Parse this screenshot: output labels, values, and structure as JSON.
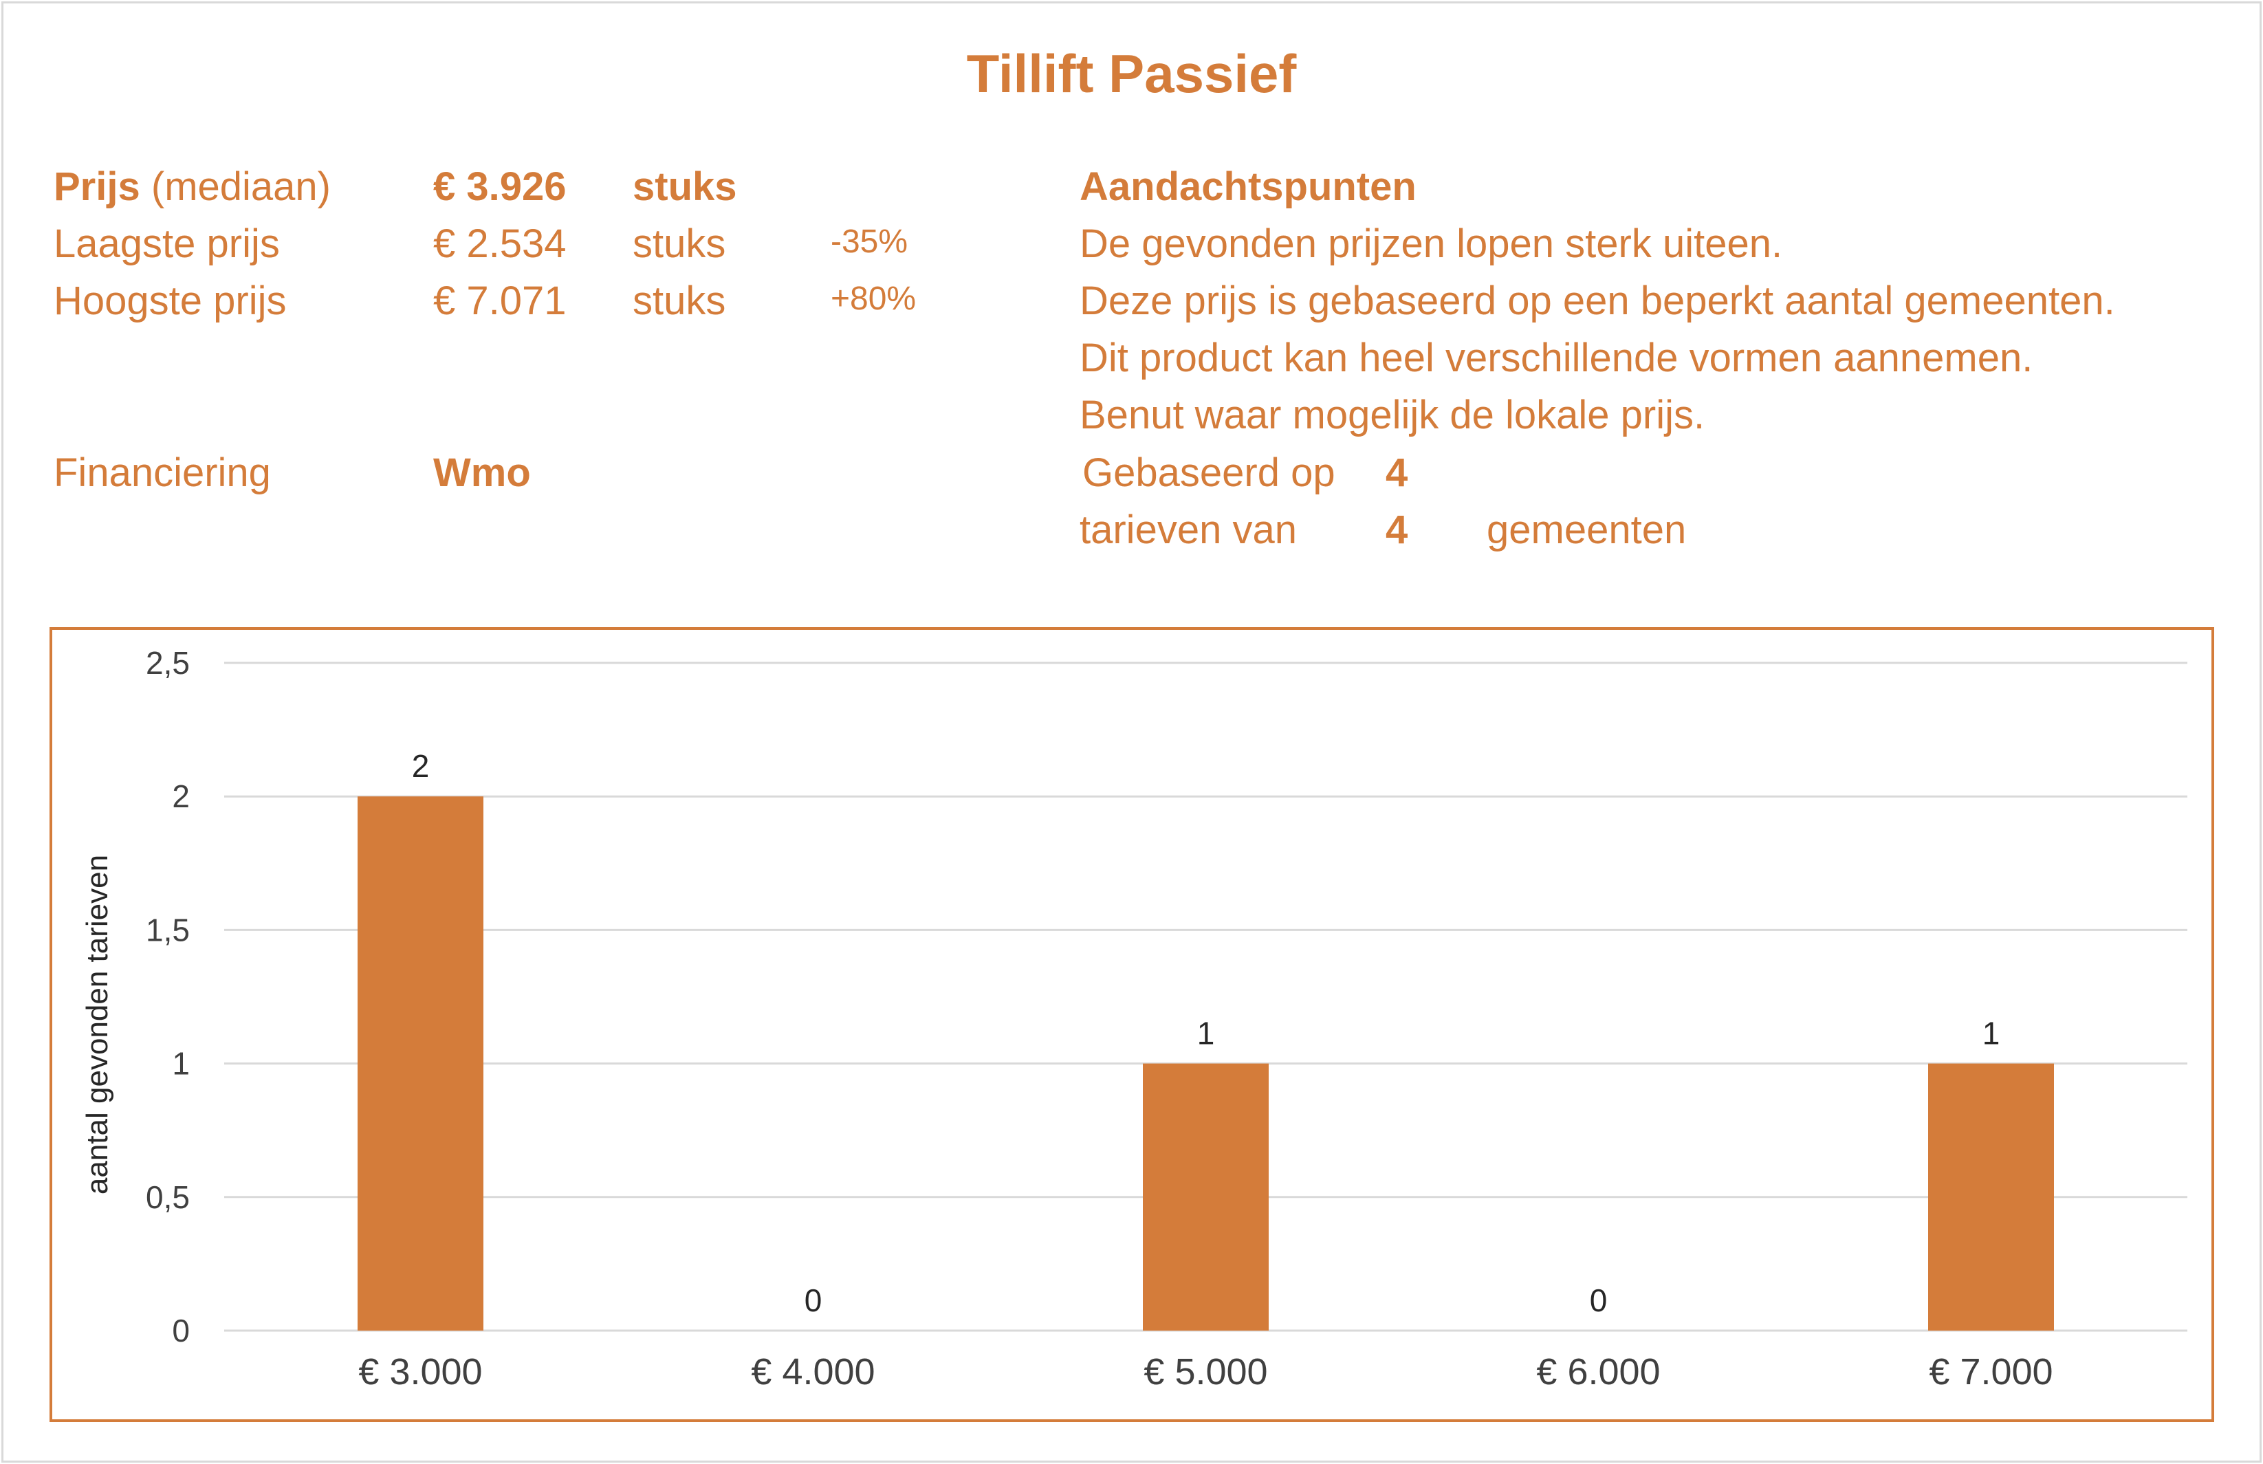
{
  "title": "Tillift Passief",
  "prices": {
    "median_label": "Prijs",
    "median_suffix": "(mediaan)",
    "median_value": "€ 3.926",
    "median_unit": "stuks",
    "low_label": "Laagste prijs",
    "low_value": "€ 2.534",
    "low_unit": "stuks",
    "low_pct": "-35%",
    "high_label": "Hoogste prijs",
    "high_value": "€ 7.071",
    "high_unit": "stuks",
    "high_pct": "+80%",
    "financing_label": "Financiering",
    "financing_value": "Wmo"
  },
  "notes": {
    "heading": "Aandachtspunten",
    "lines": [
      "De gevonden prijzen lopen sterk uiteen.",
      "Deze prijs is gebaseerd op een beperkt aantal gemeenten.",
      "Dit product kan heel verschillende vormen aannemen.",
      "Benut waar mogelijk de lokale prijs."
    ],
    "based_on_label": "Gebaseerd op",
    "based_on_value": "4",
    "tariffs_label": "tarieven van",
    "tariffs_value": "4",
    "municipalities_label": "gemeenten"
  },
  "colors": {
    "accent": "#d47c3a",
    "grid": "#d9d9d9",
    "axis_text": "#404040"
  },
  "chart_data": {
    "type": "bar",
    "categories": [
      "€ 3.000",
      "€ 4.000",
      "€ 5.000",
      "€ 6.000",
      "€ 7.000"
    ],
    "values": [
      2,
      0,
      1,
      0,
      1
    ],
    "data_labels": [
      "2",
      "0",
      "1",
      "0",
      "1"
    ],
    "ylabel": "aantal gevonden tarieven",
    "ylim": [
      0,
      2.5
    ],
    "yticks": [
      0,
      0.5,
      1,
      1.5,
      2,
      2.5
    ],
    "ytick_labels": [
      "0",
      "0,5",
      "1",
      "1,5",
      "2",
      "2,5"
    ],
    "grid": true,
    "legend": "none"
  }
}
